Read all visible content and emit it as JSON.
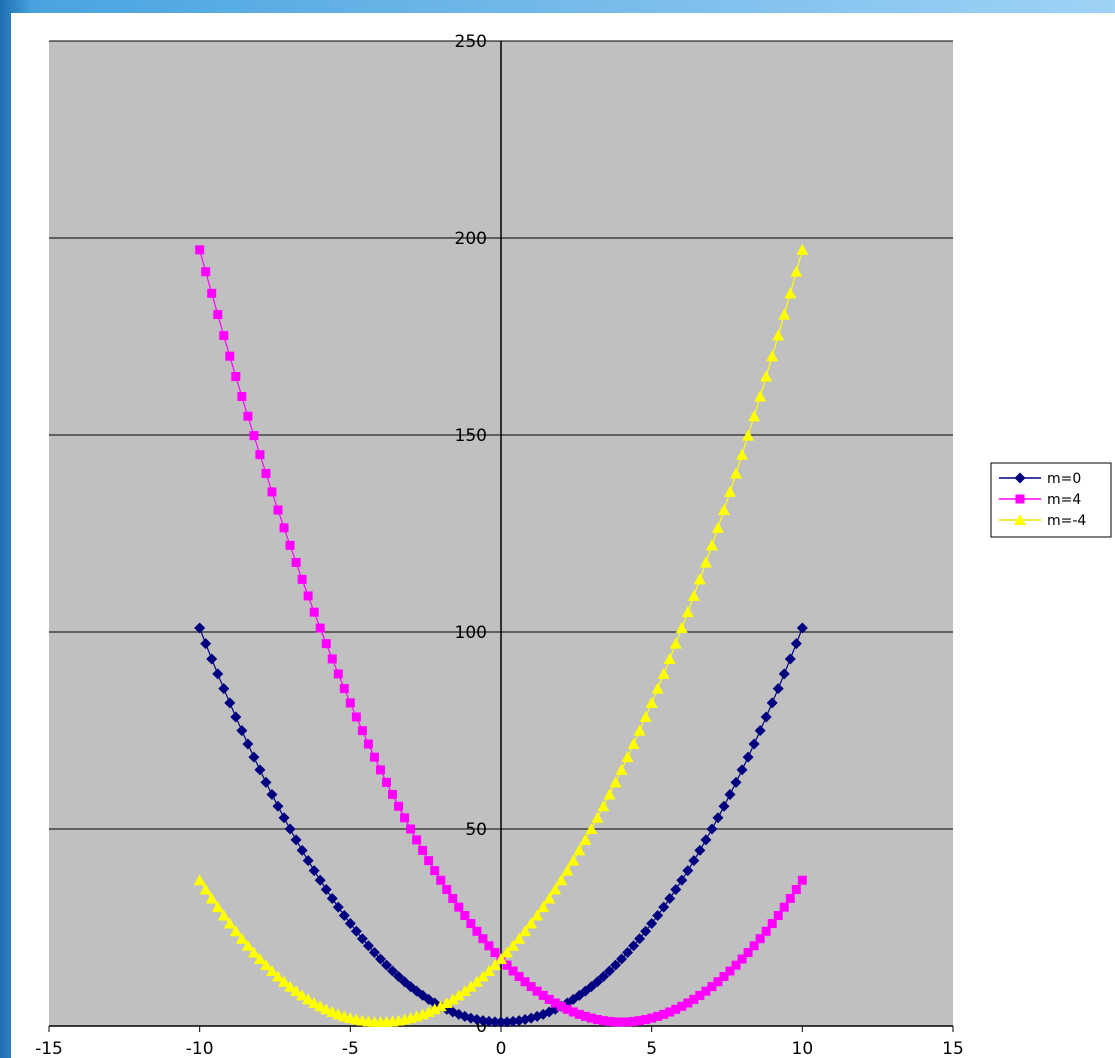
{
  "chart_data": {
    "type": "scatter",
    "title": "",
    "xlabel": "",
    "ylabel": "",
    "xlim": [
      -15,
      15
    ],
    "ylim": [
      0,
      250
    ],
    "xticks": [
      -15,
      -10,
      -5,
      0,
      5,
      10,
      15
    ],
    "yticks": [
      0,
      50,
      100,
      150,
      200,
      250
    ],
    "x_tick_labels": [
      "-15",
      "-10",
      "-5",
      "0",
      "5",
      "10",
      "15"
    ],
    "y_tick_labels": [
      "0",
      "50",
      "100",
      "150",
      "200",
      "250"
    ],
    "grid": "horizontal major gridlines",
    "plot_background": "#c0c0c0",
    "legend_position": "right",
    "x_step": 0.2,
    "series": [
      {
        "name": "m=0",
        "color": "#000080",
        "marker": "diamond",
        "x_range": [
          -10,
          10
        ],
        "equation_form": "y = (x - m)^2 + 1, m = 0"
      },
      {
        "name": "m=4",
        "color": "#ff00ff",
        "marker": "square",
        "x_range": [
          -10,
          10
        ],
        "equation_form": "y = (x - m)^2 + 1, m = 4"
      },
      {
        "name": "m=-4",
        "color": "#ffff00",
        "marker": "triangle",
        "x_range": [
          -10,
          10
        ],
        "equation_form": "y = (x - m)^2 + 1, m = -4"
      }
    ],
    "series_params": [
      0,
      4,
      -4
    ],
    "legend_labels": [
      "m=0",
      "m=4",
      "m=-4"
    ]
  }
}
